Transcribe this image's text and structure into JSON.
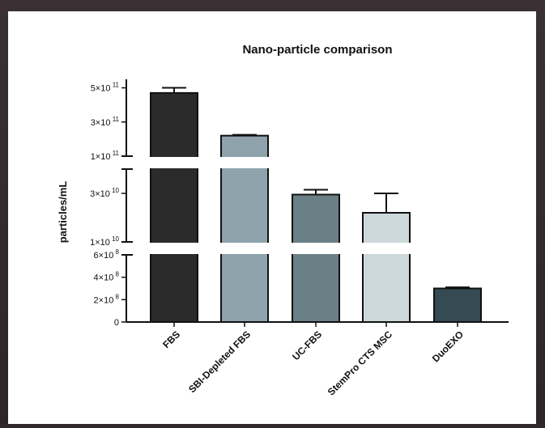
{
  "chart_data": {
    "type": "bar",
    "title": "Nano-particle comparison",
    "ylabel": "particles/mL",
    "xlabel": "",
    "categories": [
      "FBS",
      "SBI-Depleted FBS",
      "UC-FBS",
      "StemPro CTS MSC",
      "DuoEXO"
    ],
    "values": [
      470000000000,
      220000000000,
      29500000000,
      22000000000,
      300000000
    ],
    "error_upper": [
      500000000000,
      225000000000,
      31500000000,
      30000000000,
      310000000
    ],
    "colors": [
      "#2b2b2b",
      "#8fa3ad",
      "#6b7f86",
      "#cdd8db",
      "#364a54"
    ],
    "broken_axis": true,
    "segments": [
      {
        "range": [
          0,
          600000000
        ],
        "ticks": [
          {
            "value": 0,
            "coef": "0",
            "exp": ""
          },
          {
            "value": 200000000,
            "coef": "2×10",
            "exp": "8"
          },
          {
            "value": 400000000,
            "coef": "4×10",
            "exp": "8"
          },
          {
            "value": 600000000,
            "coef": "6×10",
            "exp": "8"
          }
        ]
      },
      {
        "range": [
          10000000000,
          40000000000
        ],
        "ticks": [
          {
            "value": 10000000000,
            "coef": "1×10",
            "exp": "10"
          },
          {
            "value": 30000000000,
            "coef": "3×10",
            "exp": "10"
          }
        ]
      },
      {
        "range": [
          100000000000,
          550000000000
        ],
        "ticks": [
          {
            "value": 100000000000,
            "coef": "1×10",
            "exp": "11"
          },
          {
            "value": 300000000000,
            "coef": "3×10",
            "exp": "11"
          },
          {
            "value": 500000000000,
            "coef": "5×10",
            "exp": "11"
          }
        ]
      }
    ],
    "grid": false,
    "legend": "none"
  }
}
